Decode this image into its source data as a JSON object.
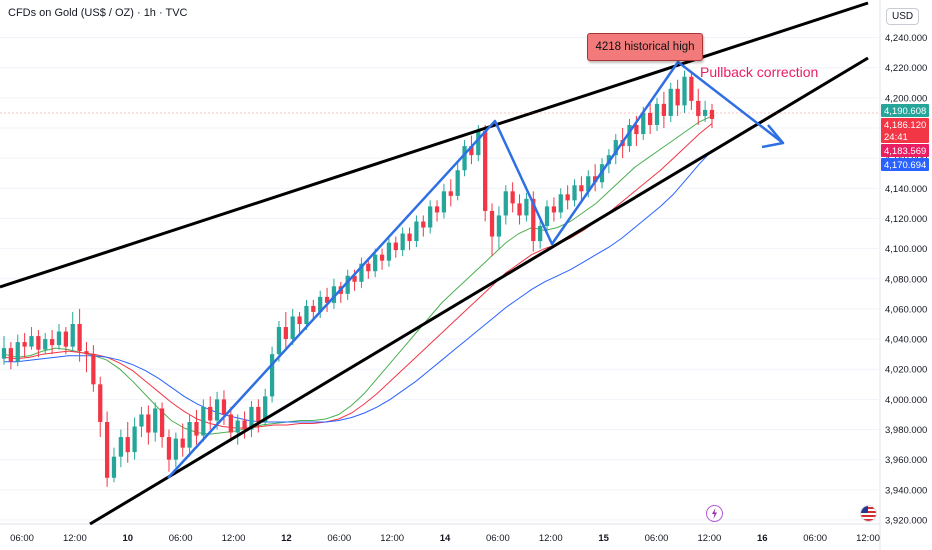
{
  "header": {
    "title": "CFDs on Gold (US$ / OZ) · 1h · TVC",
    "currency": "USD"
  },
  "annotations": {
    "high_label": "4218 historical high",
    "pullback_label": "Pullback correction"
  },
  "price_axis": {
    "ticks": [
      "4,240.000",
      "4,220.000",
      "4,200.000",
      "4,180.000",
      "4,160.000",
      "4,140.000",
      "4,120.000",
      "4,100.000",
      "4,080.000",
      "4,060.000",
      "4,040.000",
      "4,020.000",
      "4,000.000",
      "3,980.000",
      "3,960.000",
      "3,940.000",
      "3,920.000"
    ],
    "tags": [
      {
        "label": "4,190.608",
        "value": 4190.608,
        "color": "#26a69a"
      },
      {
        "label": "4,186.120",
        "value": 4186.12,
        "color": "#f23645",
        "sub": "24:41"
      },
      {
        "label": "4,183.569",
        "value": 4183.569,
        "color": "#e91e63"
      },
      {
        "label": "4,170.694",
        "value": 4170.694,
        "color": "#2962ff"
      }
    ]
  },
  "time_axis": [
    "06:00",
    "12:00",
    "10",
    "06:00",
    "12:00",
    "12",
    "06:00",
    "12:00",
    "14",
    "06:00",
    "12:00",
    "15",
    "06:00",
    "12:00",
    "16",
    "06:00",
    "12:00"
  ],
  "icons": [
    "lightning-icon",
    "us-flag-icon"
  ],
  "chart_data": {
    "type": "candlestick",
    "title": "CFDs on Gold (US$ / OZ) · 1h · TVC",
    "ylim": [
      3920,
      4245
    ],
    "y_ticks": [
      4240,
      4220,
      4200,
      4180,
      4160,
      4140,
      4120,
      4100,
      4080,
      4060,
      4040,
      4020,
      4000,
      3980,
      3960,
      3940,
      3920
    ],
    "up_color": "#26a69a",
    "down_color": "#f23645",
    "candles": [
      [
        4027,
        4034,
        4023,
        4042
      ],
      [
        4034,
        4025,
        4020,
        4038
      ],
      [
        4025,
        4038,
        4022,
        4043
      ],
      [
        4038,
        4035,
        4028,
        4044
      ],
      [
        4035,
        4042,
        4033,
        4048
      ],
      [
        4042,
        4033,
        4028,
        4046
      ],
      [
        4033,
        4040,
        4030,
        4044
      ],
      [
        4040,
        4036,
        4030,
        4046
      ],
      [
        4036,
        4045,
        4033,
        4050
      ],
      [
        4045,
        4035,
        4030,
        4048
      ],
      [
        4035,
        4050,
        4032,
        4058
      ],
      [
        4050,
        4032,
        4025,
        4060
      ],
      [
        4032,
        4030,
        4018,
        4038
      ],
      [
        4030,
        4010,
        4005,
        4036
      ],
      [
        4010,
        3985,
        3975,
        4015
      ],
      [
        3985,
        3948,
        3942,
        3992
      ],
      [
        3948,
        3962,
        3945,
        3968
      ],
      [
        3962,
        3975,
        3955,
        3980
      ],
      [
        3975,
        3965,
        3958,
        3985
      ],
      [
        3965,
        3982,
        3960,
        3988
      ],
      [
        3982,
        3990,
        3975,
        3995
      ],
      [
        3990,
        3978,
        3970,
        3996
      ],
      [
        3978,
        3994,
        3972,
        3998
      ],
      [
        3994,
        3975,
        3968,
        3998
      ],
      [
        3975,
        3960,
        3952,
        3980
      ],
      [
        3960,
        3974,
        3955,
        3978
      ],
      [
        3974,
        3968,
        3962,
        3984
      ],
      [
        3968,
        3985,
        3962,
        3990
      ],
      [
        3985,
        3976,
        3970,
        3993
      ],
      [
        3976,
        3995,
        3972,
        4000
      ],
      [
        3995,
        3986,
        3980,
        4002
      ],
      [
        3986,
        4000,
        3980,
        4005
      ],
      [
        4000,
        3990,
        3983,
        4006
      ],
      [
        3990,
        3978,
        3972,
        3995
      ],
      [
        3978,
        3986,
        3970,
        3990
      ],
      [
        3986,
        3980,
        3974,
        3992
      ],
      [
        3980,
        3995,
        3975,
        3999
      ],
      [
        3995,
        3985,
        3978,
        4000
      ],
      [
        3985,
        4002,
        3982,
        4007
      ],
      [
        4002,
        4030,
        3998,
        4035
      ],
      [
        4030,
        4048,
        4025,
        4052
      ],
      [
        4048,
        4040,
        4034,
        4058
      ],
      [
        4040,
        4055,
        4036,
        4060
      ],
      [
        4055,
        4050,
        4044,
        4058
      ],
      [
        4050,
        4062,
        4046,
        4066
      ],
      [
        4062,
        4058,
        4052,
        4066
      ],
      [
        4058,
        4068,
        4054,
        4072
      ],
      [
        4068,
        4064,
        4058,
        4074
      ],
      [
        4064,
        4075,
        4060,
        4080
      ],
      [
        4075,
        4070,
        4064,
        4078
      ],
      [
        4070,
        4082,
        4066,
        4086
      ],
      [
        4082,
        4078,
        4072,
        4086
      ],
      [
        4078,
        4090,
        4074,
        4094
      ],
      [
        4090,
        4085,
        4080,
        4094
      ],
      [
        4085,
        4096,
        4081,
        4100
      ],
      [
        4096,
        4092,
        4086,
        4100
      ],
      [
        4092,
        4104,
        4088,
        4108
      ],
      [
        4104,
        4099,
        4094,
        4108
      ],
      [
        4099,
        4110,
        4095,
        4114
      ],
      [
        4110,
        4105,
        4099,
        4114
      ],
      [
        4105,
        4118,
        4101,
        4122
      ],
      [
        4118,
        4114,
        4108,
        4122
      ],
      [
        4114,
        4128,
        4110,
        4132
      ],
      [
        4128,
        4124,
        4118,
        4132
      ],
      [
        4124,
        4138,
        4120,
        4143
      ],
      [
        4138,
        4135,
        4128,
        4146
      ],
      [
        4135,
        4152,
        4132,
        4157
      ],
      [
        4152,
        4168,
        4148,
        4172
      ],
      [
        4168,
        4162,
        4156,
        4175
      ],
      [
        4162,
        4178,
        4158,
        4182
      ],
      [
        4178,
        4125,
        4118,
        4182
      ],
      [
        4125,
        4108,
        4095,
        4130
      ],
      [
        4108,
        4122,
        4100,
        4128
      ],
      [
        4122,
        4138,
        4116,
        4142
      ],
      [
        4138,
        4130,
        4124,
        4144
      ],
      [
        4130,
        4122,
        4116,
        4136
      ],
      [
        4122,
        4133,
        4118,
        4137
      ],
      [
        4133,
        4105,
        4098,
        4138
      ],
      [
        4105,
        4115,
        4100,
        4120
      ],
      [
        4115,
        4128,
        4110,
        4132
      ],
      [
        4128,
        4124,
        4118,
        4134
      ],
      [
        4124,
        4136,
        4120,
        4140
      ],
      [
        4136,
        4132,
        4126,
        4142
      ],
      [
        4132,
        4142,
        4128,
        4146
      ],
      [
        4142,
        4138,
        4132,
        4148
      ],
      [
        4138,
        4148,
        4134,
        4152
      ],
      [
        4148,
        4144,
        4138,
        4156
      ],
      [
        4144,
        4156,
        4140,
        4160
      ],
      [
        4156,
        4162,
        4150,
        4166
      ],
      [
        4162,
        4172,
        4156,
        4176
      ],
      [
        4172,
        4168,
        4160,
        4180
      ],
      [
        4168,
        4182,
        4164,
        4186
      ],
      [
        4182,
        4176,
        4168,
        4188
      ],
      [
        4176,
        4190,
        4172,
        4194
      ],
      [
        4190,
        4182,
        4176,
        4196
      ],
      [
        4182,
        4196,
        4178,
        4200
      ],
      [
        4196,
        4188,
        4180,
        4204
      ],
      [
        4188,
        4206,
        4184,
        4210
      ],
      [
        4206,
        4195,
        4188,
        4212
      ],
      [
        4195,
        4214,
        4190,
        4218
      ],
      [
        4214,
        4198,
        4192,
        4218
      ],
      [
        4198,
        4188,
        4182,
        4206
      ],
      [
        4188,
        4192,
        4184,
        4198
      ],
      [
        4192,
        4186,
        4180,
        4196
      ]
    ],
    "moving_averages": [
      {
        "color": "#4caf50",
        "values": [
          4030,
          4028,
          4029,
          4032,
          4034,
          4033,
          4031,
          4029,
          4026,
          4020,
          4012,
          4003,
          3994,
          3986,
          3981,
          3978,
          3977,
          3978,
          3979,
          3981,
          3983,
          3984,
          3985,
          3986,
          3986,
          3987,
          3990,
          3996,
          4004,
          4014,
          4024,
          4034,
          4044,
          4054,
          4064,
          4072,
          4080,
          4088,
          4096,
          4104,
          4110,
          4114,
          4112,
          4114,
          4118,
          4124,
          4130,
          4138,
          4146,
          4154,
          4160,
          4166,
          4172,
          4178,
          4184,
          4188
        ]
      },
      {
        "color": "#f23645",
        "values": [
          4028,
          4027,
          4028,
          4030,
          4031,
          4032,
          4031,
          4030,
          4028,
          4024,
          4019,
          4012,
          4005,
          3998,
          3992,
          3987,
          3984,
          3982,
          3981,
          3981,
          3982,
          3983,
          3983,
          3984,
          3984,
          3985,
          3987,
          3991,
          3997,
          4004,
          4012,
          4020,
          4028,
          4036,
          4044,
          4052,
          4060,
          4068,
          4076,
          4084,
          4090,
          4096,
          4100,
          4103,
          4107,
          4112,
          4118,
          4124,
          4131,
          4138,
          4145,
          4152,
          4160,
          4168,
          4176,
          4183
        ]
      },
      {
        "color": "#2962ff",
        "values": [
          4025,
          4025,
          4026,
          4027,
          4028,
          4029,
          4029,
          4029,
          4028,
          4026,
          4023,
          4019,
          4014,
          4008,
          4002,
          3997,
          3993,
          3990,
          3988,
          3986,
          3985,
          3985,
          3985,
          3985,
          3985,
          3985,
          3986,
          3988,
          3991,
          3995,
          4000,
          4006,
          4012,
          4019,
          4026,
          4033,
          4040,
          4047,
          4054,
          4061,
          4067,
          4073,
          4078,
          4082,
          4086,
          4091,
          4096,
          4101,
          4107,
          4114,
          4121,
          4128,
          4136,
          4146,
          4156,
          4165
        ]
      }
    ]
  }
}
